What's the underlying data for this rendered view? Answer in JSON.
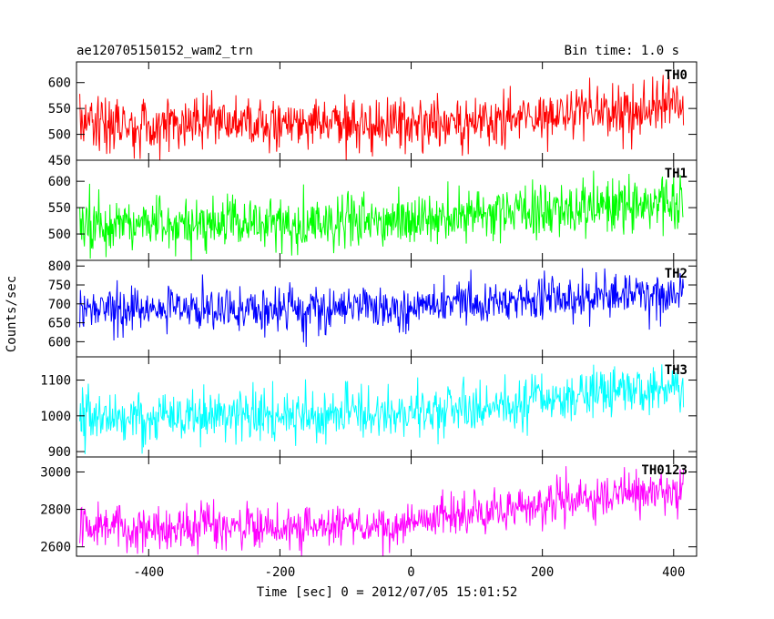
{
  "chart_data": {
    "type": "line",
    "title": "ae120705150152_wam2_trn",
    "bin_time": "Bin time: 1.0 s",
    "xlabel": "Time [sec] 0 = 2012/07/05 15:01:52",
    "ylabel": "Counts/sec",
    "xlim": [
      -510,
      435
    ],
    "x_ticks": [
      -400,
      -200,
      0,
      200,
      400
    ],
    "x_range_data": [
      -505,
      415
    ],
    "grid": false,
    "panels": [
      {
        "name": "TH0",
        "color": "#ff0000",
        "ylim": [
          450,
          640
        ],
        "y_ticks": [
          450,
          500,
          550,
          600
        ],
        "trend": [
          [
            -505,
            520
          ],
          [
            -200,
            520
          ],
          [
            0,
            520
          ],
          [
            200,
            535
          ],
          [
            415,
            555
          ]
        ],
        "noise_sd": 25
      },
      {
        "name": "TH1",
        "color": "#00ff00",
        "ylim": [
          450,
          640
        ],
        "y_ticks": [
          500,
          550,
          600
        ],
        "trend": [
          [
            -505,
            515
          ],
          [
            -200,
            520
          ],
          [
            0,
            525
          ],
          [
            200,
            545
          ],
          [
            415,
            560
          ]
        ],
        "noise_sd": 25
      },
      {
        "name": "TH2",
        "color": "#0000ff",
        "ylim": [
          560,
          815
        ],
        "y_ticks": [
          600,
          650,
          700,
          750,
          800
        ],
        "trend": [
          [
            -505,
            685
          ],
          [
            -200,
            685
          ],
          [
            0,
            690
          ],
          [
            200,
            715
          ],
          [
            415,
            730
          ]
        ],
        "noise_sd": 30
      },
      {
        "name": "TH3",
        "color": "#00ffff",
        "ylim": [
          885,
          1165
        ],
        "y_ticks": [
          900,
          1000,
          1100
        ],
        "trend": [
          [
            -505,
            995
          ],
          [
            -200,
            1000
          ],
          [
            0,
            1010
          ],
          [
            200,
            1045
          ],
          [
            415,
            1085
          ]
        ],
        "noise_sd": 35
      },
      {
        "name": "TH0123",
        "color": "#ff00ff",
        "ylim": [
          2550,
          3080
        ],
        "y_ticks": [
          2600,
          2800,
          3000
        ],
        "trend": [
          [
            -505,
            2710
          ],
          [
            -200,
            2710
          ],
          [
            0,
            2725
          ],
          [
            200,
            2820
          ],
          [
            415,
            2920
          ]
        ],
        "noise_sd": 60
      }
    ]
  }
}
